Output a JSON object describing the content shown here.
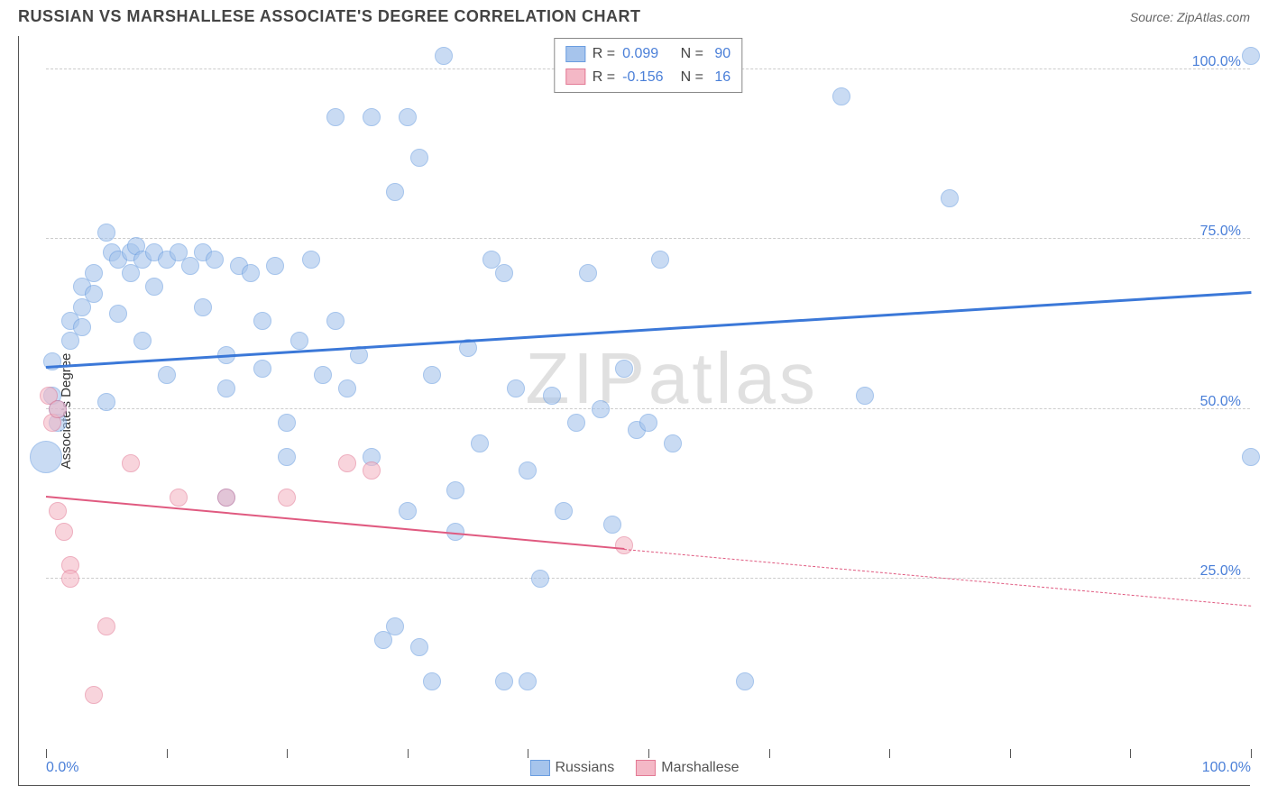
{
  "header": {
    "title": "RUSSIAN VS MARSHALLESE ASSOCIATE'S DEGREE CORRELATION CHART",
    "source": "Source: ZipAtlas.com"
  },
  "watermark": "ZIPatlas",
  "chart": {
    "type": "scatter",
    "background_color": "#ffffff",
    "grid_color": "#cccccc",
    "axis_color": "#555555",
    "tick_label_color": "#4a7fd8",
    "tick_fontsize": 16,
    "ylabel": "Associate's Degree",
    "ylabel_fontsize": 15,
    "xlim": [
      0,
      100
    ],
    "ylim": [
      0,
      105
    ],
    "xtick_positions": [
      0,
      10,
      20,
      30,
      40,
      50,
      60,
      70,
      80,
      90,
      100
    ],
    "xtick_labels": {
      "0": "0.0%",
      "100": "100.0%"
    },
    "ytick_positions": [
      25,
      50,
      75,
      100
    ],
    "ytick_labels": {
      "25": "25.0%",
      "50": "50.0%",
      "75": "75.0%",
      "100": "100.0%"
    },
    "series": {
      "russians": {
        "label": "Russians",
        "fill_color": "#a6c4ec",
        "stroke_color": "#6a9de0",
        "fill_opacity": 0.6,
        "marker_radius": 10,
        "trend": {
          "y_at_x0": 56,
          "y_at_x100": 67,
          "color": "#3b78d8",
          "width": 2.5,
          "solid_until_x": 100
        },
        "R": "0.099",
        "N": "90",
        "points": [
          {
            "x": 0,
            "y": 43,
            "r": 18
          },
          {
            "x": 0.5,
            "y": 52
          },
          {
            "x": 0.5,
            "y": 57
          },
          {
            "x": 1,
            "y": 48
          },
          {
            "x": 1,
            "y": 50
          },
          {
            "x": 2,
            "y": 60
          },
          {
            "x": 2,
            "y": 63
          },
          {
            "x": 3,
            "y": 65
          },
          {
            "x": 3,
            "y": 62
          },
          {
            "x": 3,
            "y": 68
          },
          {
            "x": 4,
            "y": 70
          },
          {
            "x": 4,
            "y": 67
          },
          {
            "x": 5,
            "y": 76
          },
          {
            "x": 5,
            "y": 51
          },
          {
            "x": 5.5,
            "y": 73
          },
          {
            "x": 6,
            "y": 72
          },
          {
            "x": 6,
            "y": 64
          },
          {
            "x": 7,
            "y": 70
          },
          {
            "x": 7,
            "y": 73
          },
          {
            "x": 7.5,
            "y": 74
          },
          {
            "x": 8,
            "y": 72
          },
          {
            "x": 8,
            "y": 60
          },
          {
            "x": 9,
            "y": 73
          },
          {
            "x": 9,
            "y": 68
          },
          {
            "x": 10,
            "y": 72
          },
          {
            "x": 10,
            "y": 55
          },
          {
            "x": 11,
            "y": 73
          },
          {
            "x": 12,
            "y": 71
          },
          {
            "x": 13,
            "y": 73
          },
          {
            "x": 13,
            "y": 65
          },
          {
            "x": 14,
            "y": 72
          },
          {
            "x": 15,
            "y": 53
          },
          {
            "x": 15,
            "y": 58
          },
          {
            "x": 15,
            "y": 37
          },
          {
            "x": 16,
            "y": 71
          },
          {
            "x": 17,
            "y": 70
          },
          {
            "x": 18,
            "y": 63
          },
          {
            "x": 18,
            "y": 56
          },
          {
            "x": 19,
            "y": 71
          },
          {
            "x": 20,
            "y": 48
          },
          {
            "x": 20,
            "y": 43
          },
          {
            "x": 21,
            "y": 60
          },
          {
            "x": 22,
            "y": 72
          },
          {
            "x": 23,
            "y": 55
          },
          {
            "x": 24,
            "y": 93
          },
          {
            "x": 24,
            "y": 63
          },
          {
            "x": 25,
            "y": 53
          },
          {
            "x": 26,
            "y": 58
          },
          {
            "x": 27,
            "y": 93
          },
          {
            "x": 27,
            "y": 43
          },
          {
            "x": 28,
            "y": 16
          },
          {
            "x": 29,
            "y": 82
          },
          {
            "x": 29,
            "y": 18
          },
          {
            "x": 30,
            "y": 93
          },
          {
            "x": 30,
            "y": 35
          },
          {
            "x": 31,
            "y": 87
          },
          {
            "x": 31,
            "y": 15
          },
          {
            "x": 32,
            "y": 55
          },
          {
            "x": 32,
            "y": 10
          },
          {
            "x": 33,
            "y": 102
          },
          {
            "x": 34,
            "y": 38
          },
          {
            "x": 34,
            "y": 32
          },
          {
            "x": 35,
            "y": 59
          },
          {
            "x": 36,
            "y": 45
          },
          {
            "x": 37,
            "y": 72
          },
          {
            "x": 38,
            "y": 10
          },
          {
            "x": 38,
            "y": 70
          },
          {
            "x": 39,
            "y": 53
          },
          {
            "x": 40,
            "y": 41
          },
          {
            "x": 40,
            "y": 10
          },
          {
            "x": 41,
            "y": 25
          },
          {
            "x": 42,
            "y": 52
          },
          {
            "x": 43,
            "y": 35
          },
          {
            "x": 44,
            "y": 48
          },
          {
            "x": 45,
            "y": 70
          },
          {
            "x": 46,
            "y": 50
          },
          {
            "x": 47,
            "y": 33
          },
          {
            "x": 48,
            "y": 56
          },
          {
            "x": 49,
            "y": 47
          },
          {
            "x": 50,
            "y": 48
          },
          {
            "x": 51,
            "y": 72
          },
          {
            "x": 52,
            "y": 45
          },
          {
            "x": 55,
            "y": 102
          },
          {
            "x": 57,
            "y": 102
          },
          {
            "x": 58,
            "y": 10
          },
          {
            "x": 66,
            "y": 96
          },
          {
            "x": 68,
            "y": 52
          },
          {
            "x": 75,
            "y": 81
          },
          {
            "x": 100,
            "y": 102
          },
          {
            "x": 100,
            "y": 43
          }
        ]
      },
      "marshallese": {
        "label": "Marshallese",
        "fill_color": "#f4b8c6",
        "stroke_color": "#e37a95",
        "fill_opacity": 0.6,
        "marker_radius": 10,
        "trend": {
          "y_at_x0": 37,
          "y_at_x100": 21,
          "color": "#e05a80",
          "width": 2,
          "solid_until_x": 48
        },
        "R": "-0.156",
        "N": "16",
        "points": [
          {
            "x": 0.2,
            "y": 52
          },
          {
            "x": 0.5,
            "y": 48
          },
          {
            "x": 1,
            "y": 50
          },
          {
            "x": 1,
            "y": 35
          },
          {
            "x": 1.5,
            "y": 32
          },
          {
            "x": 2,
            "y": 27
          },
          {
            "x": 2,
            "y": 25
          },
          {
            "x": 4,
            "y": 8
          },
          {
            "x": 5,
            "y": 18
          },
          {
            "x": 7,
            "y": 42
          },
          {
            "x": 11,
            "y": 37
          },
          {
            "x": 15,
            "y": 37
          },
          {
            "x": 20,
            "y": 37
          },
          {
            "x": 25,
            "y": 42
          },
          {
            "x": 27,
            "y": 41
          },
          {
            "x": 48,
            "y": 30
          }
        ]
      }
    },
    "legend_top": {
      "rows": [
        {
          "swatch_fill": "#a6c4ec",
          "swatch_stroke": "#6a9de0",
          "r_label": "R =",
          "r_value": "0.099",
          "n_label": "N =",
          "n_value": "90"
        },
        {
          "swatch_fill": "#f4b8c6",
          "swatch_stroke": "#e37a95",
          "r_label": "R =",
          "r_value": "-0.156",
          "n_label": "N =",
          "n_value": "16"
        }
      ]
    },
    "legend_bottom": [
      {
        "swatch_fill": "#a6c4ec",
        "swatch_stroke": "#6a9de0",
        "label": "Russians"
      },
      {
        "swatch_fill": "#f4b8c6",
        "swatch_stroke": "#e37a95",
        "label": "Marshallese"
      }
    ]
  }
}
